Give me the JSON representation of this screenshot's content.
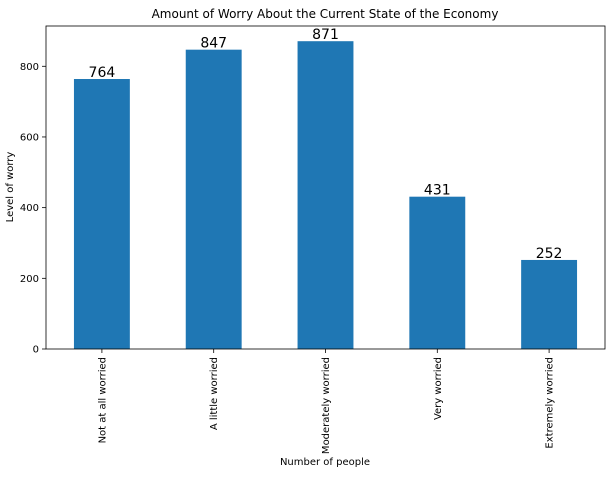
{
  "chart_data": {
    "type": "bar",
    "title": "Amount of Worry About the Current State of the Economy",
    "xlabel": "Number of people",
    "ylabel": "Level of worry",
    "categories": [
      "Not at all worried",
      "A little worried",
      "Moderately worried",
      "Very worried",
      "Extremely worried"
    ],
    "values": [
      764,
      847,
      871,
      431,
      252
    ],
    "data_labels": [
      "764",
      "847",
      "871",
      "431",
      "252"
    ],
    "ylim": [
      0,
      914
    ],
    "yticks": [
      0,
      200,
      400,
      600,
      800
    ],
    "ytick_labels": [
      "0",
      "200",
      "400",
      "600",
      "800"
    ],
    "grid": false,
    "legend": "none",
    "bar_color": "#1f77b4",
    "label_rotation": "vertical"
  }
}
